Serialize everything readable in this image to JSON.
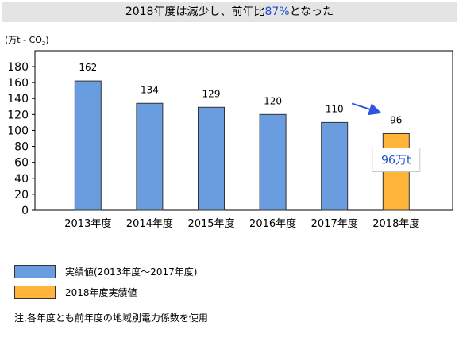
{
  "title": {
    "prefix": "2018年度は減少し、前年比",
    "highlight": "87%",
    "suffix": "となった"
  },
  "unit_label": "(万t - CO",
  "unit_sub": "2",
  "unit_close": ")",
  "colors": {
    "actual": "#6a9ce0",
    "year2018": "#ffb53a",
    "highlight_text": "#1f4fcc",
    "arrow": "#2d55e0"
  },
  "callout": "96万t",
  "legend": [
    {
      "label": "実績値(2013年度～2017年度)",
      "color": "#6a9ce0"
    },
    {
      "label": "2018年度実績値",
      "color": "#ffb53a"
    }
  ],
  "note": "注.各年度とも前年度の地域別電力係数を使用",
  "chart_data": {
    "type": "bar",
    "categories": [
      "2013年度",
      "2014年度",
      "2015年度",
      "2016年度",
      "2017年度",
      "2018年度"
    ],
    "values": [
      162,
      134,
      129,
      120,
      110,
      96
    ],
    "data_labels": [
      "162",
      "134",
      "129",
      "120",
      "110",
      "96"
    ],
    "ylim": [
      0,
      180
    ],
    "yticks": [
      0,
      20,
      40,
      60,
      80,
      100,
      120,
      140,
      160,
      180
    ],
    "ylabel": "(万t - CO2)",
    "grid": false
  }
}
